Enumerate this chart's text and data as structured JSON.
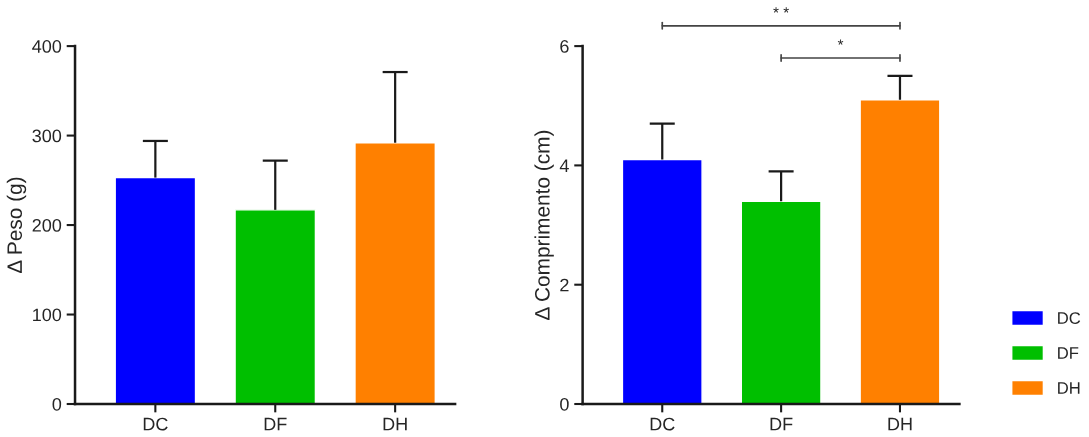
{
  "chart_data": [
    {
      "type": "bar",
      "ylabel": "Δ Peso (g)",
      "categories": [
        "DC",
        "DF",
        "DH"
      ],
      "series": [
        {
          "color": "#0000ff",
          "values": [
            253,
            null,
            null
          ],
          "errors": [
            [
              253,
              294
            ],
            null,
            null
          ]
        },
        {
          "color": "#00bf00",
          "values": [
            null,
            217,
            null
          ],
          "errors": [
            null,
            [
              217,
              272
            ],
            null
          ]
        },
        {
          "color": "#ff8000",
          "values": [
            null,
            null,
            292
          ],
          "errors": [
            null,
            null,
            [
              292,
              371
            ]
          ]
        }
      ],
      "ylim": [
        0,
        400
      ],
      "yticks": [
        0,
        100,
        200,
        300,
        400
      ],
      "grid": false
    },
    {
      "type": "bar",
      "ylabel": "Δ Comprimento (cm)",
      "categories": [
        "DC",
        "DF",
        "DH"
      ],
      "series": [
        {
          "name": "DC",
          "color": "#0000ff",
          "values": [
            4.1,
            null,
            null
          ],
          "errors": [
            [
              4.1,
              4.7
            ],
            null,
            null
          ]
        },
        {
          "name": "DF",
          "color": "#00bf00",
          "values": [
            null,
            3.4,
            null
          ],
          "errors": [
            null,
            [
              3.4,
              3.9
            ],
            null
          ]
        },
        {
          "name": "DH",
          "color": "#ff8000",
          "values": [
            null,
            null,
            5.1
          ],
          "errors": [
            null,
            null,
            [
              5.1,
              5.5
            ]
          ]
        }
      ],
      "ylim": [
        0,
        6
      ],
      "yticks": [
        0,
        2,
        4,
        6
      ],
      "grid": false,
      "legend": "right",
      "annotations": [
        "* *",
        "*"
      ]
    }
  ]
}
